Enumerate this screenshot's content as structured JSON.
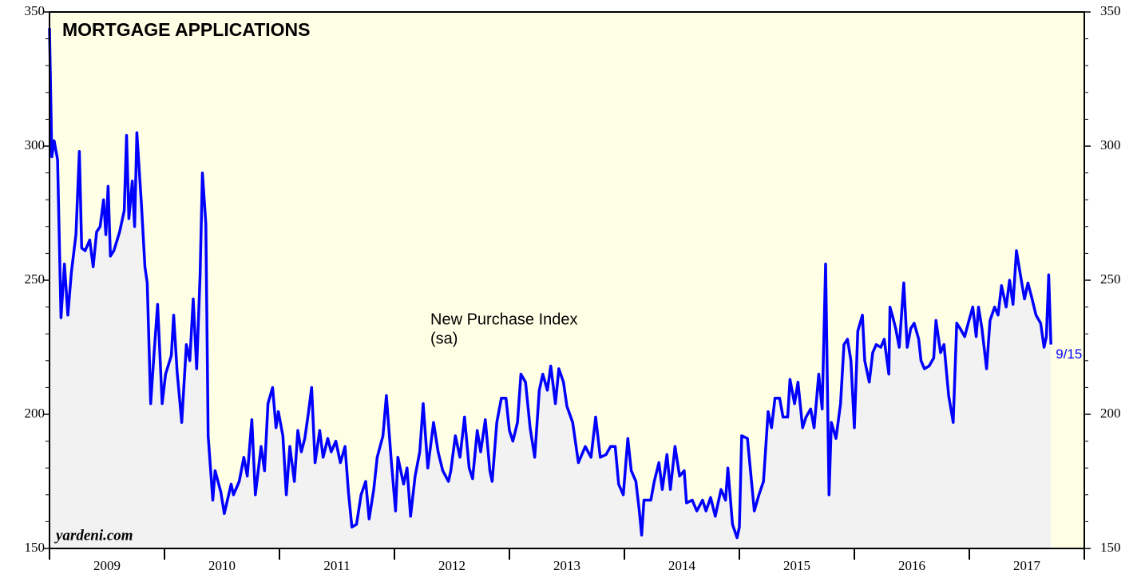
{
  "chart_data": {
    "type": "line",
    "title": "MORTGAGE APPLICATIONS",
    "annotation": [
      "New Purchase Index",
      "(sa)"
    ],
    "source": "yardeni.com",
    "end_label": "9/15",
    "categories": [
      "2009",
      "2010",
      "2011",
      "2012",
      "2013",
      "2014",
      "2015",
      "2016",
      "2017"
    ],
    "xlim": [
      2009,
      2018
    ],
    "xticks": [
      2009,
      2010,
      2011,
      2012,
      2013,
      2014,
      2015,
      2016,
      2017,
      2018
    ],
    "ylim": [
      150,
      350
    ],
    "yticks": [
      150,
      200,
      250,
      300,
      350
    ],
    "yminorticks": [
      160,
      170,
      180,
      190,
      210,
      220,
      230,
      240,
      260,
      270,
      280,
      290,
      310,
      320,
      330,
      340
    ],
    "plot_background": "#ffffe6",
    "area_color": "#f2f2f2",
    "series": [
      {
        "name": "New Purchase Index",
        "color": "#0000ff",
        "x": [
          2009.0,
          2009.02,
          2009.04,
          2009.07,
          2009.1,
          2009.13,
          2009.16,
          2009.19,
          2009.23,
          2009.26,
          2009.28,
          2009.31,
          2009.35,
          2009.38,
          2009.41,
          2009.44,
          2009.47,
          2009.49,
          2009.51,
          2009.53,
          2009.56,
          2009.61,
          2009.65,
          2009.67,
          2009.69,
          2009.72,
          2009.74,
          2009.76,
          2009.8,
          2009.83,
          2009.85,
          2009.88,
          2009.91,
          2009.94,
          2009.98,
          2010.01,
          2010.06,
          2010.08,
          2010.11,
          2010.15,
          2010.19,
          2010.22,
          2010.25,
          2010.28,
          2010.31,
          2010.33,
          2010.36,
          2010.38,
          2010.42,
          2010.44,
          2010.49,
          2010.52,
          2010.58,
          2010.6,
          2010.65,
          2010.69,
          2010.72,
          2010.76,
          2010.79,
          2010.84,
          2010.87,
          2010.9,
          2010.94,
          2010.97,
          2010.99,
          2011.03,
          2011.06,
          2011.09,
          2011.13,
          2011.16,
          2011.19,
          2011.22,
          2011.25,
          2011.28,
          2011.31,
          2011.35,
          2011.38,
          2011.42,
          2011.45,
          2011.49,
          2011.53,
          2011.57,
          2011.6,
          2011.63,
          2011.67,
          2011.71,
          2011.75,
          2011.78,
          2011.82,
          2011.85,
          2011.9,
          2011.93,
          2011.97,
          2012.01,
          2012.03,
          2012.08,
          2012.11,
          2012.14,
          2012.18,
          2012.22,
          2012.25,
          2012.29,
          2012.34,
          2012.38,
          2012.42,
          2012.47,
          2012.49,
          2012.53,
          2012.57,
          2012.61,
          2012.65,
          2012.68,
          2012.72,
          2012.75,
          2012.79,
          2012.83,
          2012.85,
          2012.89,
          2012.93,
          2012.97,
          2013.0,
          2013.03,
          2013.07,
          2013.1,
          2013.14,
          2013.18,
          2013.22,
          2013.26,
          2013.29,
          2013.33,
          2013.36,
          2013.4,
          2013.43,
          2013.47,
          2013.5,
          2013.55,
          2013.6,
          2013.66,
          2013.71,
          2013.75,
          2013.79,
          2013.84,
          2013.88,
          2013.92,
          2013.95,
          2013.99,
          2014.03,
          2014.06,
          2014.1,
          2014.13,
          2014.15,
          2014.17,
          2014.23,
          2014.26,
          2014.3,
          2014.33,
          2014.37,
          2014.4,
          2014.44,
          2014.48,
          2014.52,
          2014.54,
          2014.59,
          2014.63,
          2014.68,
          2014.71,
          2014.75,
          2014.79,
          2014.84,
          2014.88,
          2014.9,
          2014.94,
          2014.98,
          2015.0,
          2015.02,
          2015.07,
          2015.13,
          2015.17,
          2015.21,
          2015.25,
          2015.28,
          2015.31,
          2015.35,
          2015.38,
          2015.42,
          2015.44,
          2015.48,
          2015.51,
          2015.55,
          2015.58,
          2015.62,
          2015.65,
          2015.69,
          2015.72,
          2015.75,
          2015.78,
          2015.8,
          2015.84,
          2015.88,
          2015.91,
          2015.94,
          2015.97,
          2016.0,
          2016.03,
          2016.07,
          2016.09,
          2016.13,
          2016.16,
          2016.19,
          2016.23,
          2016.26,
          2016.3,
          2016.31,
          2016.33,
          2016.36,
          2016.39,
          2016.43,
          2016.46,
          2016.49,
          2016.52,
          2016.56,
          2016.58,
          2016.61,
          2016.65,
          2016.69,
          2016.71,
          2016.75,
          2016.78,
          2016.82,
          2016.86,
          2016.89,
          2016.92,
          2016.96,
          2016.99,
          2017.03,
          2017.06,
          2017.08,
          2017.11,
          2017.15,
          2017.18,
          2017.22,
          2017.25,
          2017.28,
          2017.32,
          2017.35,
          2017.38,
          2017.41,
          2017.44,
          2017.48,
          2017.51,
          2017.54,
          2017.58,
          2017.62,
          2017.65,
          2017.67,
          2017.69,
          2017.71
        ],
        "values": [
          344,
          296,
          302,
          295,
          236,
          256,
          237,
          253,
          267,
          298,
          262,
          261,
          265,
          255,
          268,
          270,
          280,
          267,
          285,
          259,
          261,
          268,
          276,
          304,
          273,
          287,
          270,
          305,
          278,
          255,
          249,
          204,
          223,
          241,
          204,
          215,
          222,
          237,
          216,
          197,
          226,
          220,
          243,
          217,
          252,
          290,
          271,
          192,
          168,
          179,
          171,
          163,
          174,
          170,
          175,
          184,
          177,
          198,
          170,
          188,
          179,
          204,
          210,
          195,
          201,
          192,
          170,
          188,
          175,
          194,
          186,
          191,
          200,
          210,
          182,
          194,
          184,
          191,
          186,
          190,
          182,
          188,
          171,
          158,
          159,
          170,
          175,
          161,
          172,
          184,
          192,
          207,
          184,
          164,
          184,
          174,
          180,
          162,
          177,
          186,
          204,
          180,
          197,
          186,
          179,
          175,
          179,
          192,
          184,
          199,
          180,
          176,
          194,
          186,
          198,
          179,
          175,
          197,
          206,
          206,
          194,
          190,
          197,
          215,
          212,
          195,
          184,
          209,
          215,
          209,
          218,
          204,
          217,
          212,
          203,
          197,
          182,
          188,
          184,
          199,
          184,
          185,
          188,
          188,
          174,
          170,
          191,
          179,
          175,
          164,
          155,
          168,
          168,
          175,
          182,
          172,
          185,
          172,
          188,
          177,
          179,
          167,
          168,
          164,
          168,
          164,
          169,
          162,
          172,
          168,
          180,
          159,
          154,
          158,
          192,
          191,
          164,
          170,
          175,
          201,
          195,
          206,
          206,
          199,
          199,
          213,
          204,
          212,
          195,
          199,
          202,
          195,
          215,
          202,
          256,
          170,
          197,
          191,
          204,
          226,
          228,
          220,
          195,
          231,
          237,
          220,
          212,
          223,
          226,
          225,
          228,
          215,
          240,
          237,
          232,
          225,
          249,
          225,
          232,
          234,
          228,
          220,
          217,
          218,
          221,
          235,
          223,
          226,
          207,
          197,
          234,
          232,
          229,
          234,
          240,
          229,
          240,
          232,
          217,
          235,
          240,
          237,
          248,
          240,
          250,
          241,
          261,
          253,
          243,
          249,
          244,
          237,
          234,
          225,
          229,
          252,
          226
        ]
      }
    ]
  }
}
